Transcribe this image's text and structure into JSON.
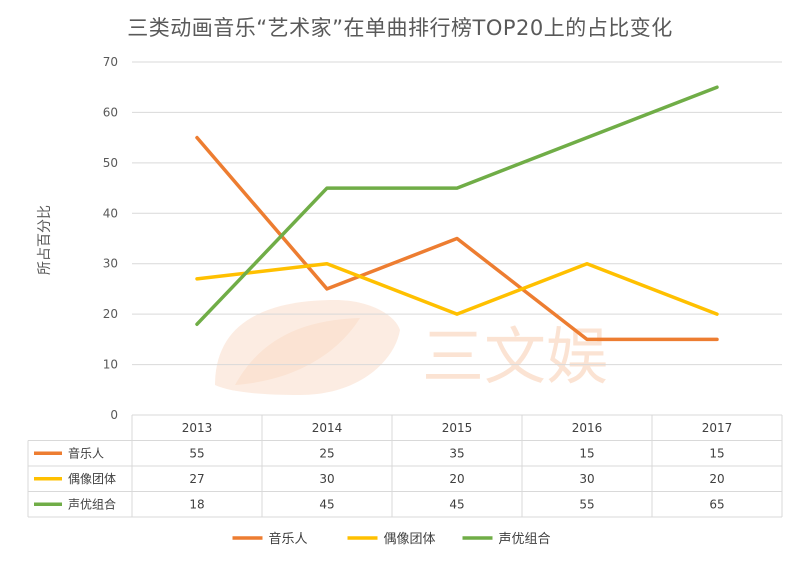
{
  "chart_data": {
    "type": "line",
    "title": "三类动画音乐“艺术家”在单曲排行榜TOP20上的占比变化",
    "xlabel": "",
    "ylabel": "所占百分比",
    "categories": [
      "2013",
      "2014",
      "2015",
      "2016",
      "2017"
    ],
    "ylim": [
      0,
      70
    ],
    "yticks": [
      0,
      10,
      20,
      30,
      40,
      50,
      60,
      70
    ],
    "grid": true,
    "legend_position": "bottom",
    "data_table": true,
    "series": [
      {
        "name": "音乐人",
        "values": [
          55,
          25,
          35,
          15,
          15
        ],
        "color": "#ED7D31"
      },
      {
        "name": "偶像团体",
        "values": [
          27,
          30,
          20,
          30,
          20
        ],
        "color": "#FFC000"
      },
      {
        "name": "声优组合",
        "values": [
          18,
          45,
          45,
          55,
          65
        ],
        "color": "#70AD47"
      }
    ]
  },
  "watermark": {
    "text": "三文娱",
    "colors": [
      "#F4B183",
      "#F8CBAD"
    ]
  }
}
